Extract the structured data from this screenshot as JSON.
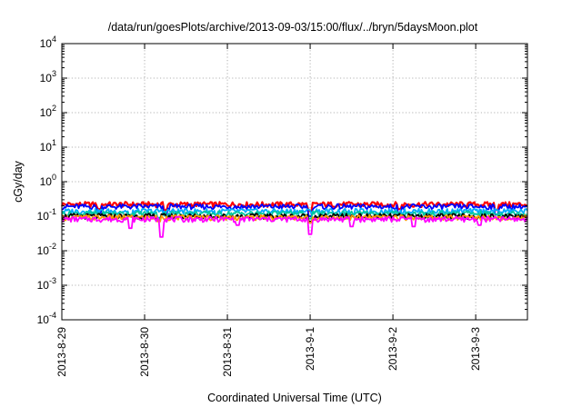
{
  "chart_data": {
    "type": "line",
    "title": "/data/run/goesPlots/archive/2013-09-03/15:00/flux/../bryn/5daysMoon.plot",
    "xlabel": "Coordinated Universal Time (UTC)",
    "ylabel": "cGy/day",
    "y_scale": "log",
    "ylim": [
      "1e-4",
      "1e4"
    ],
    "xlim": [
      "2013-08-29 00:00",
      "2013-09-03 15:00"
    ],
    "grid": true,
    "x_ticks": [
      "2013-8-29",
      "2013-8-30",
      "2013-8-31",
      "2013-9-1",
      "2013-9-2",
      "2013-9-3"
    ],
    "y_ticks": [
      {
        "base": "10",
        "exp": "-4"
      },
      {
        "base": "10",
        "exp": "-3"
      },
      {
        "base": "10",
        "exp": "-2"
      },
      {
        "base": "10",
        "exp": "-1"
      },
      {
        "base": "10",
        "exp": "0"
      },
      {
        "base": "10",
        "exp": "1"
      },
      {
        "base": "10",
        "exp": "2"
      },
      {
        "base": "10",
        "exp": "3"
      },
      {
        "base": "10",
        "exp": "4"
      }
    ],
    "series": [
      {
        "color": "#ff0000",
        "level": 0.22,
        "dips": [
          [
            "2013-08-29 11:00",
            0.16
          ],
          [
            "2013-08-30 06:00",
            0.15
          ],
          [
            "2013-09-01 00:00",
            0.14
          ],
          [
            "2013-09-02 02:00",
            0.16
          ],
          [
            "2013-09-03 06:00",
            0.15
          ]
        ]
      },
      {
        "color": "#0000ff",
        "level": 0.19,
        "dips": [
          [
            "2013-08-29 11:00",
            0.12
          ],
          [
            "2013-08-30 06:00",
            0.11
          ],
          [
            "2013-09-01 00:00",
            0.1
          ],
          [
            "2013-09-02 02:00",
            0.12
          ],
          [
            "2013-09-03 06:00",
            0.11
          ]
        ]
      },
      {
        "color": "#00aaff",
        "level": 0.14,
        "dips": [
          [
            "2013-08-29 20:00",
            0.1
          ],
          [
            "2013-08-30 21:00",
            0.1
          ],
          [
            "2013-09-01 12:00",
            0.1
          ]
        ]
      },
      {
        "color": "#00c8a0",
        "level": 0.12,
        "dips": [
          [
            "2013-08-30 04:00",
            0.09
          ],
          [
            "2013-09-01 00:00",
            0.085
          ]
        ]
      },
      {
        "color": "#000000",
        "level": 0.1,
        "dips": [
          [
            "2013-08-30 04:00",
            0.075
          ],
          [
            "2013-09-01 00:00",
            0.07
          ]
        ]
      },
      {
        "color": "#ff9900",
        "level": 0.092,
        "dips": [
          [
            "2013-08-30 04:00",
            0.07
          ],
          [
            "2013-09-01 00:00",
            0.065
          ]
        ]
      },
      {
        "color": "#ff00ff",
        "level": 0.082,
        "dips": [
          [
            "2013-08-29 20:00",
            0.045
          ],
          [
            "2013-08-30 05:00",
            0.025
          ],
          [
            "2013-08-31 03:00",
            0.055
          ],
          [
            "2013-09-01 00:00",
            0.03
          ],
          [
            "2013-09-01 12:00",
            0.05
          ],
          [
            "2013-09-02 06:00",
            0.05
          ],
          [
            "2013-09-03 01:00",
            0.055
          ]
        ]
      }
    ]
  }
}
